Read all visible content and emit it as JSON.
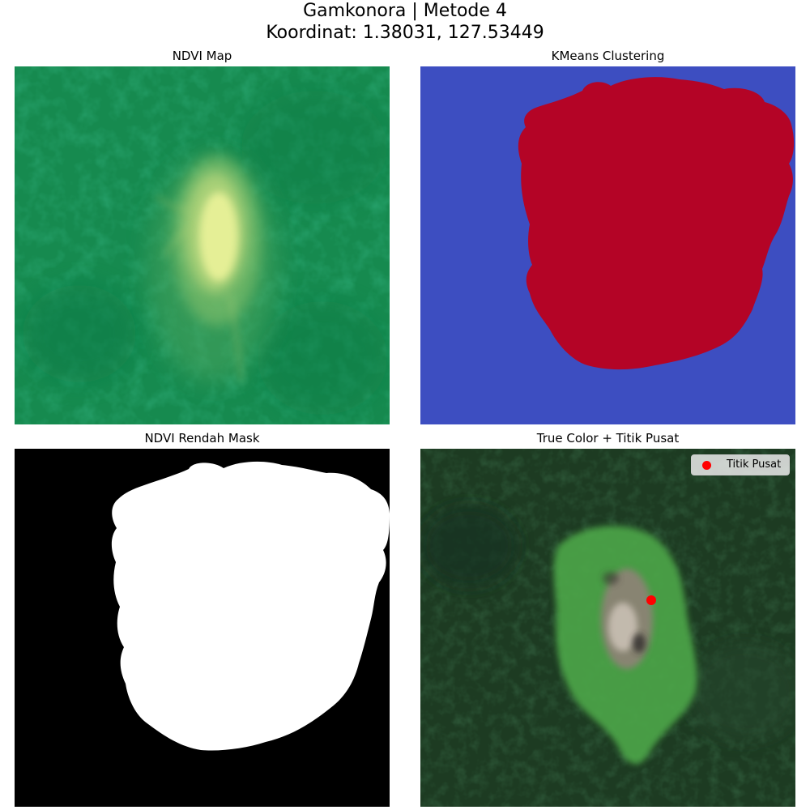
{
  "figure": {
    "title_line1": "Gamkonora | Metode 4",
    "title_line2": "Koordinat: 1.38031, 127.53449"
  },
  "panels": {
    "ndvi_map": {
      "title": "NDVI Map",
      "colormap": "summer"
    },
    "kmeans": {
      "title": "KMeans Clustering",
      "colormap": "coolwarm",
      "colors": {
        "background": "#3d4ec1",
        "cluster": "#b40426"
      }
    },
    "mask": {
      "title": "NDVI Rendah Mask",
      "colors": {
        "background": "#000000",
        "mask": "#ffffff"
      }
    },
    "true_color": {
      "title": "True Color + Titik Pusat",
      "legend": {
        "label": "Titik Pusat",
        "marker_color": "#ff0000"
      }
    }
  }
}
